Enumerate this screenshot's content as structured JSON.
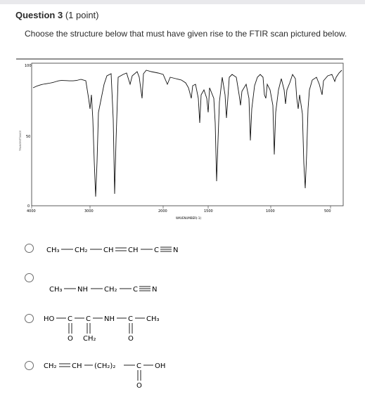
{
  "question": {
    "title": "Question 3",
    "points": "(1 point)",
    "prompt": "Choose the structure below that must have given rise to the FTIR scan pictured below."
  },
  "spectrum": {
    "y_ticks": [
      "100",
      "50",
      "0"
    ],
    "x_ticks": [
      "4000",
      "3000",
      "2000",
      "1500",
      "1000",
      "500"
    ],
    "x_label": "WAVENUMBER(-1)",
    "y_label": "TRANSMITTANCE"
  },
  "options": [
    {
      "id": "a",
      "formula": "CH3—CH2—CH=CH—C≡N"
    },
    {
      "id": "b",
      "formula": "CH3—NH—CH2—C≡N"
    },
    {
      "id": "c",
      "formula": "HO—C(=O)—C(=CH2)—NH—C(=O)—CH3"
    },
    {
      "id": "d",
      "formula": "CH2=CH—(CH2)2—C(=O)—OH"
    }
  ],
  "structures": {
    "ch3": "CH₃",
    "ch2": "CH₂",
    "ch": "CH",
    "c": "C",
    "n": "N",
    "nh": "NH",
    "ho": "HO",
    "oh": "OH",
    "o": "O",
    "ch2_paren": "(CH₂)₂"
  }
}
